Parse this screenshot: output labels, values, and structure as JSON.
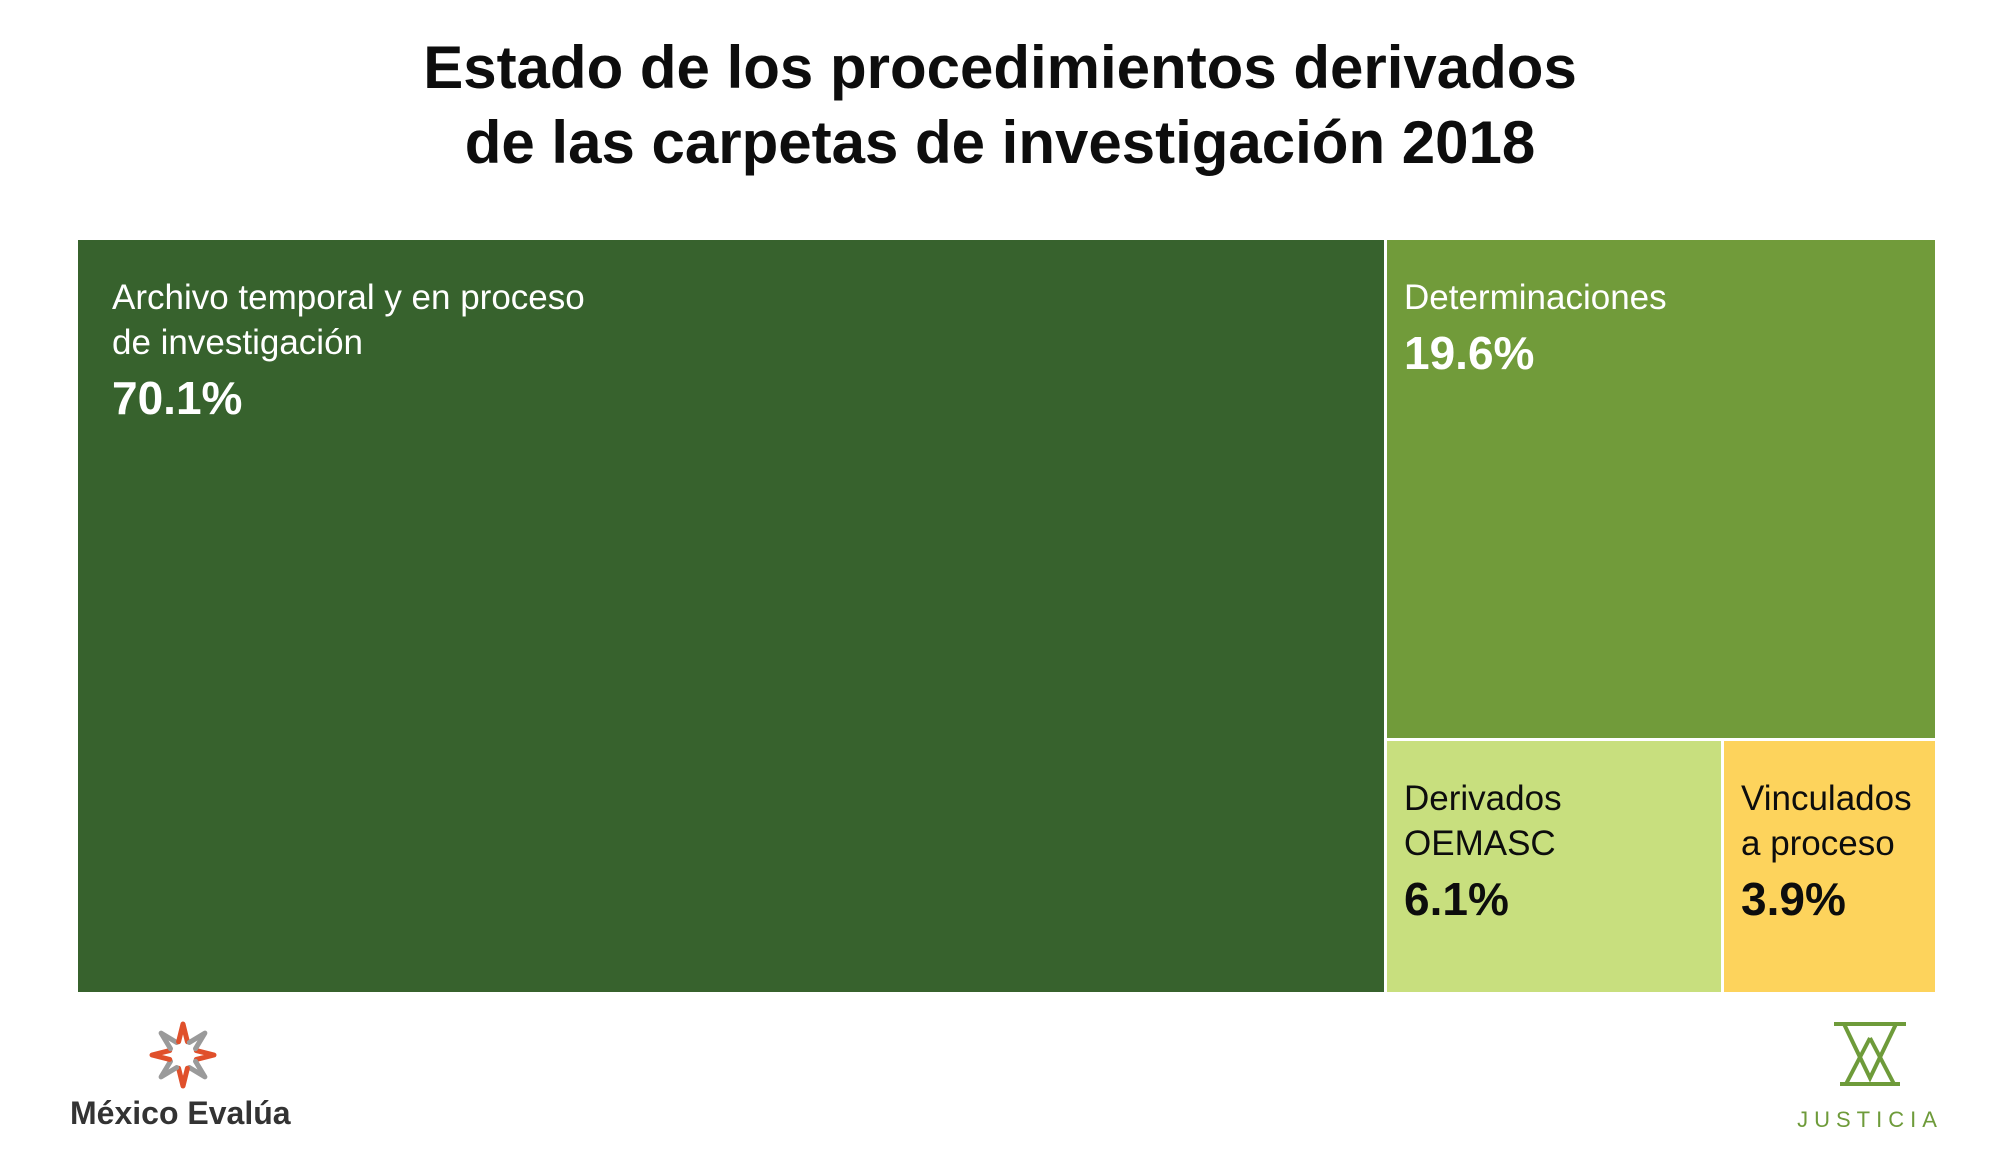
{
  "title": {
    "line1": "Estado de los procedimientos derivados",
    "line2": "de las carpetas de investigación 2018"
  },
  "chart_data": {
    "type": "treemap",
    "title": "Estado de los procedimientos derivados de las carpetas de investigación 2018",
    "items": [
      {
        "label": "Archivo temporal y en proceso\nde investigación",
        "value": 70.1,
        "value_label": "70.1%",
        "color": "#37622d",
        "text": "light"
      },
      {
        "label": "Determinaciones",
        "value": 19.6,
        "value_label": "19.6%",
        "color": "#719b3a",
        "text": "light"
      },
      {
        "label": "Derivados\nOEMASC",
        "value": 6.1,
        "value_label": "6.1%",
        "color": "#c8df7e",
        "text": "dark"
      },
      {
        "label": "Vinculados\na proceso",
        "value": 3.9,
        "value_label": "3.9%",
        "color": "#fdd35c",
        "text": "dark"
      }
    ]
  },
  "logos": {
    "left": {
      "text": "México Evalúa",
      "icon": "star-burst-icon",
      "icon_color": "#e0502b"
    },
    "right": {
      "text": "JUSTICIA",
      "icon": "justice-triangle-icon",
      "icon_color": "#6e9b3a"
    }
  }
}
